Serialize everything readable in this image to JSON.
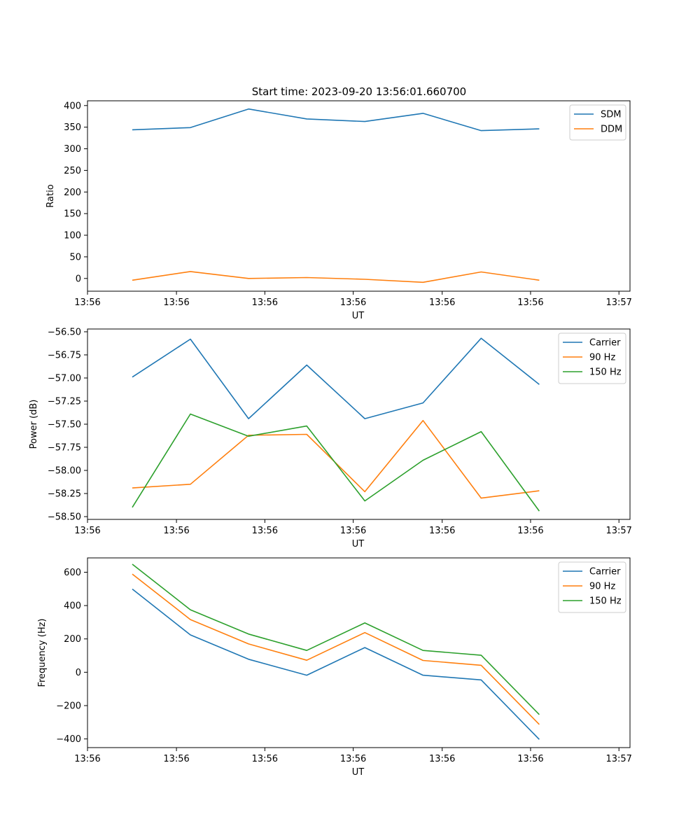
{
  "figure": {
    "title": "Start time: 2023-09-20 13:56:01.660700"
  },
  "colors": {
    "blue": "#1f77b4",
    "orange": "#ff7f0e",
    "green": "#2ca02c"
  },
  "chart_data": [
    {
      "type": "line",
      "title": "Start time: 2023-09-20 13:56:01.660700",
      "xlabel": "UT",
      "ylabel": "Ratio",
      "x": [
        1,
        2,
        3,
        4,
        5,
        6,
        7,
        8
      ],
      "xlim": [
        0.23,
        9.56
      ],
      "xticks": [
        0.23,
        1.76,
        3.28,
        4.8,
        6.33,
        7.85,
        9.37
      ],
      "xtick_labels": [
        "13:56",
        "13:56",
        "13:56",
        "13:56",
        "13:56",
        "13:56",
        "13:57"
      ],
      "ylim": [
        -29.5,
        411
      ],
      "yticks": [
        0,
        50,
        100,
        150,
        200,
        250,
        300,
        350,
        400
      ],
      "ytick_labels": [
        "0",
        "50",
        "100",
        "150",
        "200",
        "250",
        "300",
        "350",
        "400"
      ],
      "legend_position": "top-right",
      "series": [
        {
          "name": "SDM",
          "color": "#1f77b4",
          "values": [
            344,
            349,
            392,
            369,
            363,
            382,
            342,
            346
          ]
        },
        {
          "name": "DDM",
          "color": "#ff7f0e",
          "values": [
            -4,
            16,
            0,
            2,
            -2,
            -9,
            15,
            -4
          ]
        }
      ]
    },
    {
      "type": "line",
      "title": "",
      "xlabel": "UT",
      "ylabel": "Power (dB)",
      "x": [
        1,
        2,
        3,
        4,
        5,
        6,
        7,
        8
      ],
      "xlim": [
        0.23,
        9.56
      ],
      "xticks": [
        0.23,
        1.76,
        3.28,
        4.8,
        6.33,
        7.85,
        9.37
      ],
      "xtick_labels": [
        "13:56",
        "13:56",
        "13:56",
        "13:56",
        "13:56",
        "13:56",
        "13:57"
      ],
      "ylim": [
        -58.53,
        -56.47
      ],
      "yticks": [
        -58.5,
        -58.25,
        -58.0,
        -57.75,
        -57.5,
        -57.25,
        -57.0,
        -56.75,
        -56.5
      ],
      "ytick_labels": [
        "−58.50",
        "−58.25",
        "−58.00",
        "−57.75",
        "−57.50",
        "−57.25",
        "−57.00",
        "−56.75",
        "−56.50"
      ],
      "legend_position": "top-right",
      "series": [
        {
          "name": "Carrier",
          "color": "#1f77b4",
          "values": [
            -56.99,
            -56.58,
            -57.44,
            -56.86,
            -57.44,
            -57.27,
            -56.57,
            -57.07
          ]
        },
        {
          "name": "90 Hz",
          "color": "#ff7f0e",
          "values": [
            -58.19,
            -58.15,
            -57.62,
            -57.61,
            -58.23,
            -57.46,
            -58.3,
            -58.22
          ]
        },
        {
          "name": "150 Hz",
          "color": "#2ca02c",
          "values": [
            -58.4,
            -57.39,
            -57.63,
            -57.52,
            -58.33,
            -57.89,
            -57.58,
            -58.44
          ]
        }
      ]
    },
    {
      "type": "line",
      "title": "",
      "xlabel": "UT",
      "ylabel": "Frequency (Hz)",
      "x": [
        1,
        2,
        3,
        4,
        5,
        6,
        7,
        8
      ],
      "xlim": [
        0.23,
        9.56
      ],
      "xticks": [
        0.23,
        1.76,
        3.28,
        4.8,
        6.33,
        7.85,
        9.37
      ],
      "xtick_labels": [
        "13:56",
        "13:56",
        "13:56",
        "13:56",
        "13:56",
        "13:56",
        "13:57"
      ],
      "ylim": [
        -452,
        686
      ],
      "yticks": [
        -400,
        -200,
        0,
        200,
        400,
        600
      ],
      "ytick_labels": [
        "−400",
        "−200",
        "0",
        "200",
        "400",
        "600"
      ],
      "legend_position": "top-right",
      "series": [
        {
          "name": "Carrier",
          "color": "#1f77b4",
          "values": [
            499,
            224,
            78,
            -18,
            148,
            -18,
            -46,
            -403
          ]
        },
        {
          "name": "90 Hz",
          "color": "#ff7f0e",
          "values": [
            589,
            316,
            170,
            72,
            238,
            71,
            42,
            -313
          ]
        },
        {
          "name": "150 Hz",
          "color": "#2ca02c",
          "values": [
            648,
            375,
            229,
            131,
            296,
            131,
            102,
            -254
          ]
        }
      ]
    }
  ]
}
